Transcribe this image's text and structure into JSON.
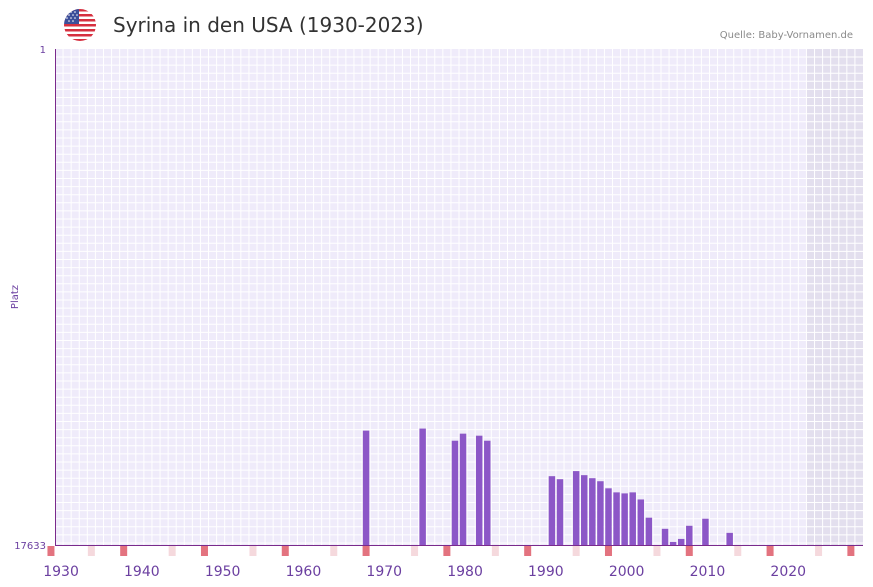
{
  "header": {
    "title": "Syrina in den USA (1930-2023)",
    "source": "Quelle: Baby-Vornamen.de"
  },
  "colors": {
    "bar": "#8c57c7",
    "axis": "#7a2a8c",
    "plot_bg": "#efebfa",
    "future_bg": "#e3dfee",
    "marker_strong": "#e3737f",
    "marker_light": "#f5d9dd",
    "tick_label": "#6b3fa0"
  },
  "chart_data": {
    "type": "bar",
    "title": "Syrina in den USA (1930-2023)",
    "xlabel": "",
    "ylabel": "Platz",
    "y_axis_inverted": true,
    "ylim": [
      1,
      17633
    ],
    "y_tick_labels": [
      "1",
      "17633"
    ],
    "x_range": [
      1929.5,
      2029.5
    ],
    "x_tick_labels": [
      "1930",
      "1940",
      "1950",
      "1960",
      "1970",
      "1980",
      "1990",
      "2000",
      "2010",
      "2020"
    ],
    "x_ticks": [
      1930,
      1940,
      1950,
      1960,
      1970,
      1980,
      1990,
      2000,
      2010,
      2020
    ],
    "shaded_from_year": 2022.5,
    "decade_markers_strong": [
      1929,
      1938,
      1948,
      1958,
      1968,
      1978,
      1988,
      1998,
      2008,
      2018,
      2028
    ],
    "decade_markers_light": [
      1934,
      1944,
      1954,
      1964,
      1974,
      1984,
      1994,
      2004,
      2014,
      2024
    ],
    "series": [
      {
        "name": "Syrina",
        "points": [
          {
            "year": 1968,
            "rank": 13567
          },
          {
            "year": 1975,
            "rank": 13494
          },
          {
            "year": 1979,
            "rank": 13926
          },
          {
            "year": 1980,
            "rank": 13675
          },
          {
            "year": 1982,
            "rank": 13747
          },
          {
            "year": 1983,
            "rank": 13926
          },
          {
            "year": 1991,
            "rank": 15186
          },
          {
            "year": 1992,
            "rank": 15294
          },
          {
            "year": 1994,
            "rank": 15006
          },
          {
            "year": 1995,
            "rank": 15150
          },
          {
            "year": 1996,
            "rank": 15258
          },
          {
            "year": 1997,
            "rank": 15366
          },
          {
            "year": 1998,
            "rank": 15618
          },
          {
            "year": 1999,
            "rank": 15762
          },
          {
            "year": 2000,
            "rank": 15798
          },
          {
            "year": 2001,
            "rank": 15762
          },
          {
            "year": 2002,
            "rank": 16014
          },
          {
            "year": 2003,
            "rank": 16662
          },
          {
            "year": 2005,
            "rank": 17058
          },
          {
            "year": 2006,
            "rank": 17525
          },
          {
            "year": 2007,
            "rank": 17417
          },
          {
            "year": 2008,
            "rank": 16950
          },
          {
            "year": 2010,
            "rank": 16698
          },
          {
            "year": 2013,
            "rank": 17202
          }
        ]
      }
    ]
  }
}
